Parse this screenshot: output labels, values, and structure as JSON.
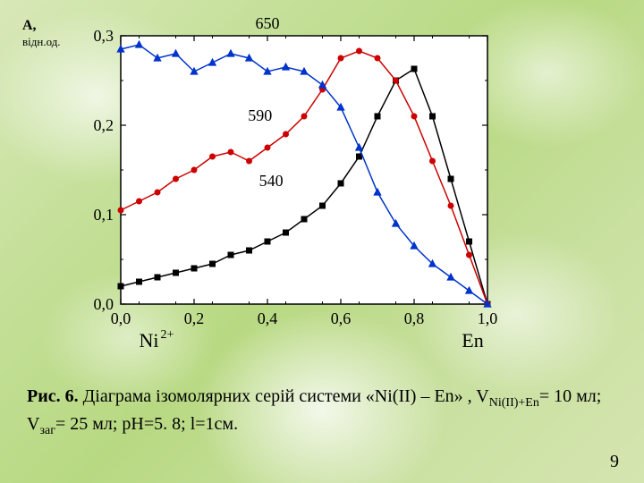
{
  "chart": {
    "type": "line",
    "background_color": "#ffffff",
    "axis_color": "#000000",
    "tick_font_size": 18,
    "label_font_size": 18,
    "yaxis_title": "A,",
    "yaxis_subtitle": "відн.од.",
    "xaxis_left_label": "Ni",
    "xaxis_left_sup": "2+",
    "xaxis_right_label": "En",
    "xlim": [
      0.0,
      1.0
    ],
    "ylim": [
      0.0,
      0.3
    ],
    "xticks": [
      0.0,
      0.2,
      0.4,
      0.6,
      0.8,
      1.0
    ],
    "xtick_labels": [
      "0,0",
      "0,2",
      "0,4",
      "0,6",
      "0,8",
      "1,0"
    ],
    "yticks": [
      0.0,
      0.1,
      0.2,
      0.3
    ],
    "ytick_labels": [
      "0,0",
      "0,1",
      "0,2",
      "0,3"
    ],
    "series": [
      {
        "name": "540",
        "label": "540",
        "label_x": 0.41,
        "label_y": 0.132,
        "color": "#000000",
        "marker": "square",
        "marker_fill": "#000000",
        "marker_size": 6,
        "line_width": 1.5,
        "x": [
          0.0,
          0.05,
          0.1,
          0.15,
          0.2,
          0.25,
          0.3,
          0.35,
          0.4,
          0.45,
          0.5,
          0.55,
          0.6,
          0.65,
          0.7,
          0.75,
          0.8,
          0.85,
          0.9,
          0.95,
          1.0
        ],
        "y": [
          0.02,
          0.025,
          0.03,
          0.035,
          0.04,
          0.045,
          0.055,
          0.06,
          0.07,
          0.08,
          0.095,
          0.11,
          0.135,
          0.165,
          0.21,
          0.25,
          0.263,
          0.21,
          0.14,
          0.07,
          0.0
        ]
      },
      {
        "name": "590",
        "label": "590",
        "label_x": 0.38,
        "label_y": 0.205,
        "color": "#cc0000",
        "marker": "circle",
        "marker_fill": "#cc0000",
        "marker_size": 6,
        "line_width": 1.5,
        "x": [
          0.0,
          0.05,
          0.1,
          0.15,
          0.2,
          0.25,
          0.3,
          0.35,
          0.4,
          0.45,
          0.5,
          0.55,
          0.6,
          0.65,
          0.7,
          0.75,
          0.8,
          0.85,
          0.9,
          0.95,
          1.0
        ],
        "y": [
          0.105,
          0.115,
          0.125,
          0.14,
          0.15,
          0.165,
          0.17,
          0.16,
          0.175,
          0.19,
          0.21,
          0.24,
          0.275,
          0.283,
          0.275,
          0.25,
          0.21,
          0.16,
          0.11,
          0.055,
          0.0
        ]
      },
      {
        "name": "650",
        "label": "650",
        "label_x": 0.4,
        "label_y": 0.308,
        "color": "#0033cc",
        "marker": "triangle",
        "marker_fill": "#0033cc",
        "marker_size": 7,
        "line_width": 1.5,
        "x": [
          0.0,
          0.05,
          0.1,
          0.15,
          0.2,
          0.25,
          0.3,
          0.35,
          0.4,
          0.45,
          0.5,
          0.55,
          0.6,
          0.65,
          0.7,
          0.75,
          0.8,
          0.85,
          0.9,
          0.95,
          1.0
        ],
        "y": [
          0.285,
          0.29,
          0.275,
          0.28,
          0.26,
          0.27,
          0.28,
          0.275,
          0.26,
          0.265,
          0.26,
          0.245,
          0.22,
          0.175,
          0.125,
          0.09,
          0.065,
          0.045,
          0.03,
          0.015,
          0.0
        ]
      }
    ]
  },
  "caption": {
    "prefix_bold": "Рис. 6.",
    "text_1": "  Діаграма ізомолярних серій системи «Ni(II) – En» , V",
    "sub_1": "Ni(II)+En",
    "text_2": "= 10 мл; V",
    "sub_2": "заг",
    "text_3": "= 25 мл; рН=5. 8; l=1см."
  },
  "page_number": "9"
}
